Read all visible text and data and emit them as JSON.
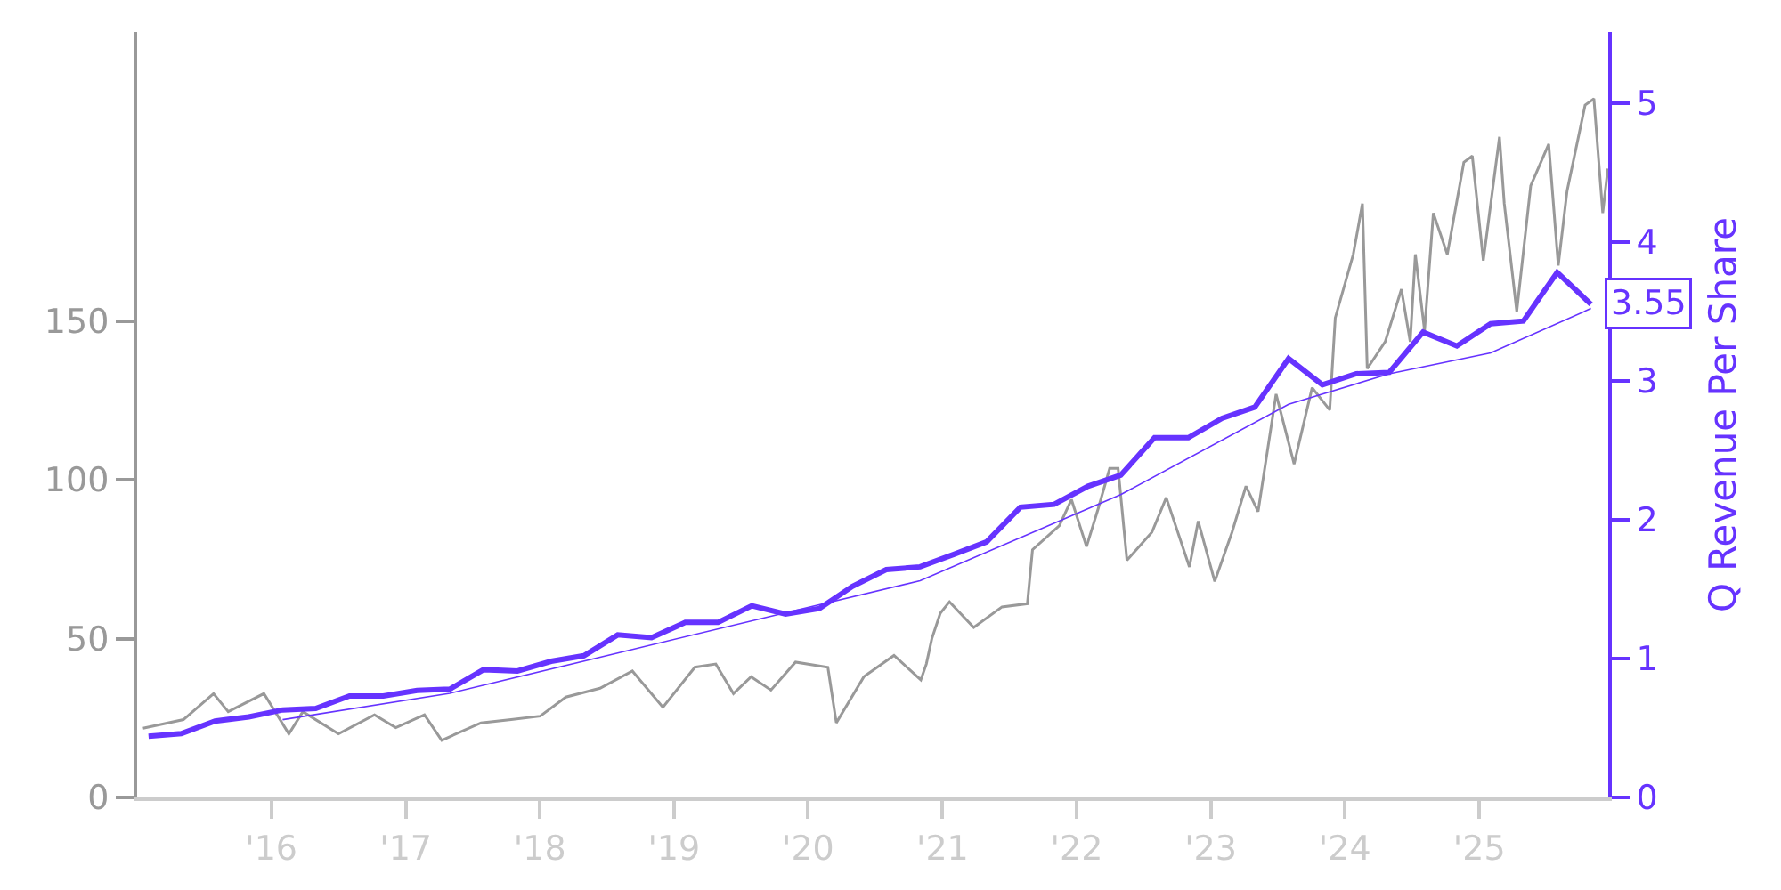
{
  "chart_data": {
    "type": "line",
    "y2label": "Q Revenue Per Share",
    "x": [
      "2015-02",
      "2015-05",
      "2015-08",
      "2015-11",
      "2016-02",
      "2016-05",
      "2016-08",
      "2016-11",
      "2017-02",
      "2017-05",
      "2017-08",
      "2017-11",
      "2018-02",
      "2018-05",
      "2018-08",
      "2018-11",
      "2019-02",
      "2019-05",
      "2019-08",
      "2019-11",
      "2020-02",
      "2020-05",
      "2020-08",
      "2020-11",
      "2021-02",
      "2021-05",
      "2021-08",
      "2021-11",
      "2022-02",
      "2022-05",
      "2022-08",
      "2022-11",
      "2023-02",
      "2023-05",
      "2023-08",
      "2023-11",
      "2024-02",
      "2024-05",
      "2024-08",
      "2024-11",
      "2025-02",
      "2025-05",
      "2025-08",
      "2025-11"
    ],
    "series": [
      {
        "color": "#999999",
        "axis": "y",
        "x": [
          "2015-01-17",
          "2015-05-07",
          "2015-07-28",
          "2015-09-06",
          "2015-12-12",
          "2016-02-18",
          "2016-03-27",
          "2016-07-02",
          "2016-10-08",
          "2016-12-05",
          "2017-02-21",
          "2017-04-09",
          "2017-07-25",
          "2017-10-15",
          "2018-01-02",
          "2018-03-13",
          "2018-06-14",
          "2018-09-10",
          "2018-12-02",
          "2019-02-27",
          "2019-04-25",
          "2019-06-12",
          "2019-07-30",
          "2019-09-22",
          "2019-11-28",
          "2020-02-24",
          "2020-03-18",
          "2020-06-01",
          "2020-08-22",
          "2020-11-03",
          "2020-11-18",
          "2020-12-03",
          "2020-12-26",
          "2021-01-20",
          "2021-03-27",
          "2021-06-12",
          "2021-08-20",
          "2021-09-03",
          "2021-11-15",
          "2021-12-18",
          "2022-01-28",
          "2022-03-01",
          "2022-04-01",
          "2022-04-24",
          "2022-05-18",
          "2022-07-25",
          "2022-09-02",
          "2022-11-04",
          "2022-11-28",
          "2023-01-12",
          "2023-02-28",
          "2023-04-07",
          "2023-05-10",
          "2023-06-28",
          "2023-08-16",
          "2023-10-04",
          "2023-11-21",
          "2023-12-06",
          "2024-01-24",
          "2024-02-18",
          "2024-03-02",
          "2024-04-20",
          "2024-06-03",
          "2024-06-27",
          "2024-07-11",
          "2024-08-05",
          "2024-08-29",
          "2024-10-06",
          "2024-11-20",
          "2024-12-13",
          "2025-01-12",
          "2025-02-25",
          "2025-03-10",
          "2025-04-13",
          "2025-05-21",
          "2025-07-09",
          "2025-08-04",
          "2025-08-28",
          "2025-10-16",
          "2025-11-09",
          "2025-12-03",
          "2025-12-17"
        ],
        "values": [
          21.8,
          24.5,
          32.7,
          27,
          32.7,
          20,
          27,
          20,
          26,
          22,
          26,
          18,
          23.5,
          24.5,
          25.6,
          31.6,
          34.4,
          39.8,
          28.4,
          41,
          42,
          32.7,
          38,
          33.8,
          42.6,
          41,
          23.5,
          38,
          44.7,
          37,
          42,
          50,
          58,
          61.6,
          53.5,
          60,
          61,
          78,
          85.6,
          93.8,
          79,
          91,
          103.6,
          103.6,
          74.7,
          83.5,
          94.4,
          72.6,
          87,
          68,
          83.5,
          98,
          90,
          127,
          105,
          129,
          122,
          151,
          171,
          187,
          135,
          143.5,
          160,
          143.5,
          171,
          147,
          184,
          171,
          200,
          202,
          169,
          208,
          187,
          153,
          192.6,
          205.7,
          167.5,
          191,
          218,
          220,
          184,
          198
        ]
      },
      {
        "color": "#6633ff",
        "axis": "y2",
        "values": [
          0.44,
          0.46,
          0.55,
          0.58,
          0.63,
          0.64,
          0.73,
          0.73,
          0.77,
          0.78,
          0.92,
          0.91,
          0.98,
          1.02,
          1.17,
          1.15,
          1.26,
          1.26,
          1.38,
          1.32,
          1.36,
          1.52,
          1.64,
          1.66,
          1.75,
          1.84,
          2.09,
          2.11,
          2.24,
          2.32,
          2.59,
          2.59,
          2.73,
          2.81,
          3.16,
          2.97,
          3.05,
          3.06,
          3.35,
          3.25,
          3.41,
          3.43,
          3.78,
          3.55
        ]
      },
      {
        "color": "#6633ff",
        "axis": "y2",
        "x": [
          "2016-02",
          "2017-05",
          "2018-08",
          "2019-11",
          "2020-11",
          "2022-05",
          "2023-08",
          "2024-05",
          "2025-02",
          "2025-11"
        ],
        "values": [
          0.56,
          0.75,
          1.04,
          1.33,
          1.56,
          2.18,
          2.83,
          3.05,
          3.2,
          3.52
        ]
      }
    ],
    "xlim": [
      "2015-01-01",
      "2025-12-18"
    ],
    "xticks": [
      {
        "value": "2016-01-01",
        "label": "'16"
      },
      {
        "value": "2017-01-01",
        "label": "'17"
      },
      {
        "value": "2018-01-01",
        "label": "'18"
      },
      {
        "value": "2019-01-01",
        "label": "'19"
      },
      {
        "value": "2020-01-01",
        "label": "'20"
      },
      {
        "value": "2021-01-01",
        "label": "'21"
      },
      {
        "value": "2022-01-01",
        "label": "'22"
      },
      {
        "value": "2023-01-01",
        "label": "'23"
      },
      {
        "value": "2024-01-01",
        "label": "'24"
      },
      {
        "value": "2025-01-01",
        "label": "'25"
      }
    ],
    "ylim": [
      0,
      241
    ],
    "yticks": [
      0,
      50,
      100,
      150
    ],
    "y2lim": [
      0,
      5.51
    ],
    "y2ticks": [
      0,
      1,
      2,
      3,
      4,
      5
    ],
    "annotations": [
      "3.55"
    ],
    "line_style": "solid"
  }
}
